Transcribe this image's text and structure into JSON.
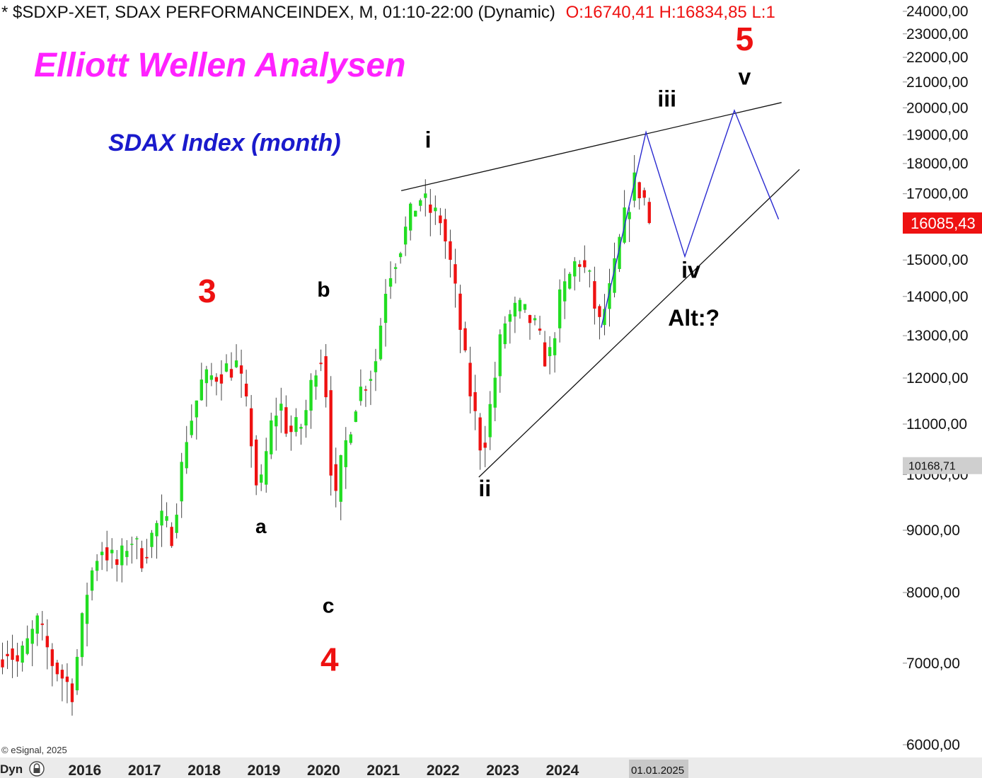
{
  "header": {
    "prefix": "* ",
    "symbol_text": "$SDXP-XET, SDAX PERFORMANCEINDEX, M, 01:10-22:00 (Dynamic)",
    "ohlc_text": "O:16740,41 H:16834,85 L:1"
  },
  "titles": {
    "main": "Elliott Wellen Analysen",
    "sub": "SDAX Index (month)"
  },
  "footer": {
    "copyright": "© eSignal, 2025",
    "mode": "Dyn",
    "date_marker": "01.01.2025"
  },
  "colors": {
    "up": "#22dd22",
    "down": "#ee1111",
    "main_title": "#ff22ff",
    "sub_title": "#1a1acc",
    "projection": "#2a2ad0",
    "wave_red": "#ee1111",
    "price_tag": "#ee1111",
    "header_ohlc": "#ee1111"
  },
  "icons": {
    "lock": "lock-icon"
  },
  "chart_data": {
    "type": "candlestick",
    "scale": "log",
    "ylim": [
      6000,
      24000
    ],
    "yticks": [
      6000,
      7000,
      8000,
      9000,
      10000,
      11000,
      12000,
      13000,
      14000,
      15000,
      16000,
      17000,
      18000,
      19000,
      20000,
      21000,
      22000,
      23000,
      24000
    ],
    "ytick_labels": [
      "6000,00",
      "7000,00",
      "8000,00",
      "9000,00",
      "10000,00",
      "11000,00",
      "12000,00",
      "13000,00",
      "14000,00",
      "15000,00",
      "16000,00",
      "17000,00",
      "18000,00",
      "19000,00",
      "20000,00",
      "21000,00",
      "22000,00",
      "23000,00",
      "24000,00"
    ],
    "xlim": [
      2014.58,
      2029.7
    ],
    "xticks": [
      2016,
      2017,
      2018,
      2019,
      2020,
      2021,
      2022,
      2023,
      2024
    ],
    "last_price": {
      "value": 16085.43,
      "label": "16085,43"
    },
    "ref_price": {
      "value": 10168.71,
      "label": "10168,71"
    },
    "anchors": [
      {
        "t": 2014.58,
        "p": 7050
      },
      {
        "t": 2014.75,
        "p": 7200
      },
      {
        "t": 2014.92,
        "p": 7000
      },
      {
        "t": 2015.25,
        "p": 7550
      },
      {
        "t": 2015.5,
        "p": 7000
      },
      {
        "t": 2015.83,
        "p": 6650
      },
      {
        "t": 2016.1,
        "p": 8150
      },
      {
        "t": 2016.3,
        "p": 8750
      },
      {
        "t": 2016.6,
        "p": 8400
      },
      {
        "t": 2016.8,
        "p": 8900
      },
      {
        "t": 2017.0,
        "p": 8550
      },
      {
        "t": 2017.3,
        "p": 9200
      },
      {
        "t": 2017.5,
        "p": 8950
      },
      {
        "t": 2017.75,
        "p": 10800
      },
      {
        "t": 2018.0,
        "p": 11900
      },
      {
        "t": 2018.4,
        "p": 12200
      },
      {
        "t": 2018.6,
        "p": 12300
      },
      {
        "t": 2018.8,
        "p": 11000
      },
      {
        "t": 2018.95,
        "p": 9500
      },
      {
        "t": 2019.15,
        "p": 10900
      },
      {
        "t": 2019.3,
        "p": 11500
      },
      {
        "t": 2019.45,
        "p": 10800
      },
      {
        "t": 2019.7,
        "p": 11000
      },
      {
        "t": 2019.95,
        "p": 12600
      },
      {
        "t": 2020.05,
        "p": 12400
      },
      {
        "t": 2020.1,
        "p": 11300
      },
      {
        "t": 2020.22,
        "p": 9300
      },
      {
        "t": 2020.35,
        "p": 10300
      },
      {
        "t": 2020.6,
        "p": 11600
      },
      {
        "t": 2020.9,
        "p": 12300
      },
      {
        "t": 2021.1,
        "p": 14500
      },
      {
        "t": 2021.3,
        "p": 15300
      },
      {
        "t": 2021.5,
        "p": 16300
      },
      {
        "t": 2021.65,
        "p": 16900
      },
      {
        "t": 2021.85,
        "p": 16400
      },
      {
        "t": 2022.0,
        "p": 16200
      },
      {
        "t": 2022.2,
        "p": 14600
      },
      {
        "t": 2022.45,
        "p": 12000
      },
      {
        "t": 2022.7,
        "p": 10400
      },
      {
        "t": 2022.85,
        "p": 11500
      },
      {
        "t": 2023.05,
        "p": 13300
      },
      {
        "t": 2023.3,
        "p": 13700
      },
      {
        "t": 2023.55,
        "p": 13300
      },
      {
        "t": 2023.8,
        "p": 12300
      },
      {
        "t": 2024.0,
        "p": 13900
      },
      {
        "t": 2024.3,
        "p": 15100
      },
      {
        "t": 2024.5,
        "p": 14400
      },
      {
        "t": 2024.65,
        "p": 13200
      },
      {
        "t": 2024.85,
        "p": 14200
      },
      {
        "t": 2025.05,
        "p": 16000
      },
      {
        "t": 2025.25,
        "p": 17400
      },
      {
        "t": 2025.42,
        "p": 16800
      },
      {
        "t": 2025.5,
        "p": 16085
      }
    ],
    "trendlines": [
      {
        "name": "upper-trendline",
        "from": {
          "t": 2021.3,
          "p": 17100
        },
        "to": {
          "t": 2027.67,
          "p": 20200
        }
      },
      {
        "name": "lower-trendline",
        "from": {
          "t": 2022.6,
          "p": 9950
        },
        "to": {
          "t": 2027.97,
          "p": 17800
        }
      }
    ],
    "projection": [
      {
        "t": 2024.65,
        "p": 13200
      },
      {
        "t": 2025.4,
        "p": 19100
      },
      {
        "t": 2026.05,
        "p": 15100
      },
      {
        "t": 2026.88,
        "p": 19900
      },
      {
        "t": 2027.62,
        "p": 16200
      }
    ],
    "labels": [
      {
        "text": "5",
        "t": 2027.05,
        "p": 22300,
        "color": "red",
        "size": 46
      },
      {
        "text": "v",
        "t": 2027.05,
        "p": 20900,
        "color": "black",
        "size": 32
      },
      {
        "text": "iii",
        "t": 2025.75,
        "p": 20050,
        "color": "black",
        "size": 32
      },
      {
        "text": "i",
        "t": 2021.75,
        "p": 18550,
        "color": "black",
        "size": 32
      },
      {
        "text": "3",
        "t": 2018.05,
        "p": 13850,
        "color": "red",
        "size": 46
      },
      {
        "text": "b",
        "t": 2020.0,
        "p": 14000,
        "color": "black",
        "size": 30
      },
      {
        "text": "iv",
        "t": 2026.15,
        "p": 14500,
        "color": "black",
        "size": 32
      },
      {
        "text": "Alt:?",
        "t": 2026.2,
        "p": 13250,
        "color": "black",
        "size": 32
      },
      {
        "text": "ii",
        "t": 2022.7,
        "p": 9600,
        "color": "black",
        "size": 32
      },
      {
        "text": "a",
        "t": 2018.95,
        "p": 8950,
        "color": "black",
        "size": 28
      },
      {
        "text": "c",
        "t": 2020.08,
        "p": 7700,
        "color": "black",
        "size": 30
      },
      {
        "text": "4",
        "t": 2020.1,
        "p": 6900,
        "color": "red",
        "size": 46
      }
    ]
  }
}
